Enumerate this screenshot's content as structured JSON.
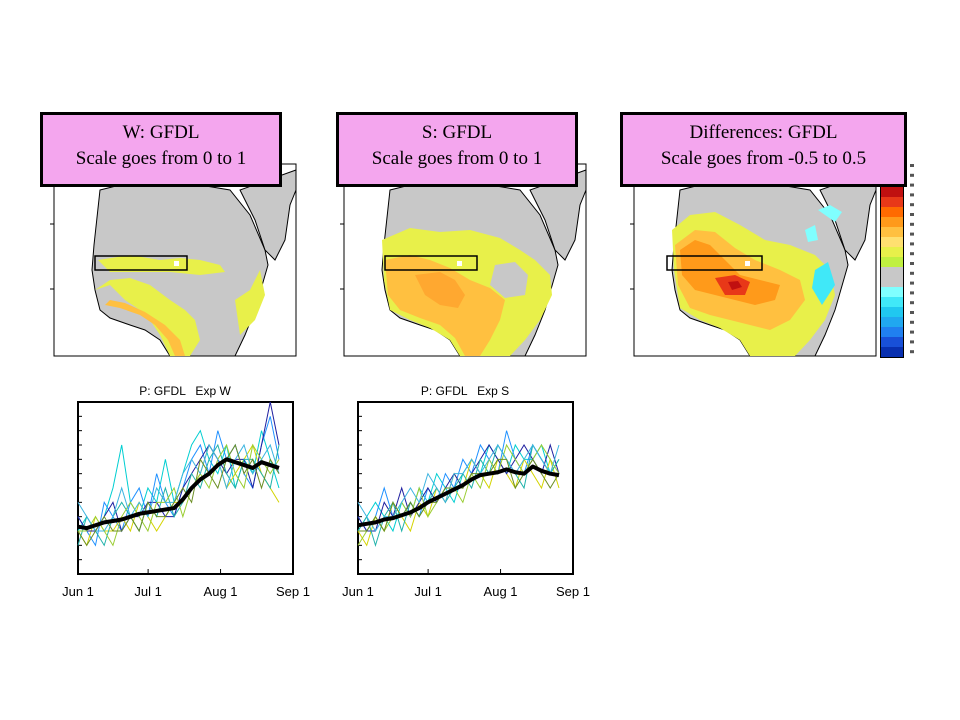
{
  "maps": [
    {
      "id": "W",
      "title_line1": "W: GFDL",
      "title_line2": "Scale goes from 0 to 1"
    },
    {
      "id": "S",
      "title_line1": "S: GFDL",
      "title_line2": "Scale goes from 0 to 1"
    },
    {
      "id": "D",
      "title_line1": "Differences: GFDL",
      "title_line2": "Scale goes from -0.5 to 0.5"
    }
  ],
  "colorbar": {
    "colors": [
      "#c01010",
      "#e83818",
      "#ff6a00",
      "#ff9a1a",
      "#ffc040",
      "#ffe070",
      "#e8f04a",
      "#c0f040",
      "#c8c8c8",
      "#c8c8c8",
      "#80ffff",
      "#40e8f8",
      "#20c8f0",
      "#20a8f0",
      "#2080f0",
      "#1850d8",
      "#0830b0"
    ]
  },
  "chart_data": [
    {
      "type": "line",
      "title": "P: GFDL   Exp W",
      "xlabel": "",
      "ylabel": "",
      "x_tick_labels": [
        "Jun 1",
        "Jul 1",
        "Aug 1",
        "Sep 1"
      ],
      "x_tick_days": [
        0,
        30,
        61,
        92
      ],
      "xlim": [
        0,
        92
      ],
      "ylim": [
        0,
        12
      ],
      "ensemble_mean": [
        3.3,
        3.2,
        3.4,
        3.6,
        3.7,
        3.8,
        4.0,
        4.2,
        4.3,
        4.4,
        4.5,
        4.6,
        5.2,
        6.0,
        6.6,
        7.0,
        7.6,
        8.0,
        7.8,
        7.6,
        7.4,
        7.8,
        7.6,
        7.4
      ],
      "members": [
        {
          "color": "#00ced1",
          "values": [
            3,
            4,
            3,
            4,
            6,
            9,
            5,
            4,
            6,
            5,
            8,
            5,
            7,
            9,
            10,
            8,
            7,
            9,
            6,
            8,
            7,
            10,
            8,
            6
          ]
        },
        {
          "color": "#1e90ff",
          "values": [
            4,
            3,
            2,
            5,
            4,
            3,
            5,
            6,
            4,
            7,
            5,
            4,
            6,
            8,
            9,
            7,
            10,
            8,
            9,
            7,
            6,
            9,
            11,
            8
          ]
        },
        {
          "color": "#d4d400",
          "values": [
            3,
            2,
            4,
            3,
            3,
            4,
            3,
            5,
            4,
            3,
            4,
            5,
            5,
            6,
            7,
            9,
            8,
            6,
            7,
            8,
            9,
            7,
            6,
            5
          ]
        },
        {
          "color": "#2020a0",
          "values": [
            4,
            3,
            3,
            4,
            5,
            3,
            4,
            4,
            5,
            5,
            4,
            4,
            6,
            7,
            8,
            9,
            8,
            7,
            8,
            8,
            6,
            9,
            12,
            9
          ]
        },
        {
          "color": "#20b2aa",
          "values": [
            2,
            4,
            3,
            2,
            4,
            5,
            4,
            3,
            5,
            4,
            6,
            4,
            5,
            7,
            6,
            8,
            9,
            7,
            6,
            8,
            8,
            7,
            6,
            9
          ]
        },
        {
          "color": "#9acd32",
          "values": [
            3,
            3,
            4,
            3,
            2,
            4,
            5,
            4,
            3,
            5,
            5,
            6,
            4,
            6,
            7,
            6,
            8,
            9,
            7,
            6,
            9,
            8,
            7,
            8
          ]
        },
        {
          "color": "#3cb4e0",
          "values": [
            5,
            4,
            3,
            3,
            4,
            6,
            4,
            5,
            4,
            6,
            5,
            5,
            7,
            8,
            7,
            9,
            8,
            6,
            8,
            9,
            7,
            8,
            9,
            7
          ]
        },
        {
          "color": "#6b8e23",
          "values": [
            3,
            2,
            3,
            4,
            3,
            3,
            4,
            3,
            5,
            4,
            4,
            5,
            6,
            5,
            8,
            7,
            6,
            8,
            9,
            7,
            8,
            6,
            8,
            7
          ]
        }
      ]
    },
    {
      "type": "line",
      "title": "P: GFDL   Exp S",
      "xlabel": "",
      "ylabel": "",
      "x_tick_labels": [
        "Jun 1",
        "Jul 1",
        "Aug 1",
        "Sep 1"
      ],
      "x_tick_days": [
        0,
        30,
        61,
        92
      ],
      "xlim": [
        0,
        92
      ],
      "ylim": [
        0,
        12
      ],
      "ensemble_mean": [
        3.4,
        3.5,
        3.6,
        3.8,
        3.9,
        4.1,
        4.3,
        4.6,
        5.0,
        5.3,
        5.6,
        5.9,
        6.2,
        6.6,
        6.9,
        7.0,
        7.1,
        7.3,
        7.1,
        7.0,
        7.5,
        7.2,
        7.0,
        6.9
      ],
      "members": [
        {
          "color": "#00ced1",
          "values": [
            3,
            4,
            5,
            4,
            3,
            5,
            4,
            6,
            5,
            7,
            6,
            5,
            7,
            8,
            7,
            9,
            8,
            7,
            9,
            8,
            8,
            9,
            7,
            8
          ]
        },
        {
          "color": "#1e90ff",
          "values": [
            4,
            3,
            4,
            6,
            4,
            4,
            5,
            4,
            6,
            5,
            7,
            6,
            8,
            7,
            9,
            8,
            7,
            10,
            8,
            7,
            9,
            8,
            7,
            7
          ]
        },
        {
          "color": "#d4d400",
          "values": [
            3,
            2,
            4,
            3,
            5,
            4,
            3,
            5,
            4,
            6,
            5,
            7,
            6,
            8,
            7,
            6,
            8,
            7,
            6,
            8,
            7,
            6,
            8,
            6
          ]
        },
        {
          "color": "#2020a0",
          "values": [
            4,
            3,
            3,
            5,
            4,
            6,
            4,
            5,
            6,
            5,
            6,
            7,
            6,
            7,
            8,
            9,
            8,
            7,
            8,
            9,
            8,
            7,
            9,
            7
          ]
        },
        {
          "color": "#20b2aa",
          "values": [
            3,
            4,
            2,
            4,
            5,
            3,
            5,
            4,
            5,
            6,
            5,
            6,
            7,
            6,
            8,
            7,
            9,
            8,
            7,
            6,
            9,
            8,
            7,
            8
          ]
        },
        {
          "color": "#9acd32",
          "values": [
            2,
            3,
            4,
            3,
            4,
            5,
            4,
            6,
            4,
            5,
            6,
            6,
            5,
            7,
            6,
            8,
            7,
            9,
            8,
            7,
            8,
            9,
            8,
            7
          ]
        },
        {
          "color": "#3cb4e0",
          "values": [
            5,
            4,
            3,
            4,
            4,
            5,
            6,
            5,
            7,
            6,
            5,
            7,
            7,
            8,
            7,
            8,
            9,
            8,
            7,
            8,
            9,
            8,
            7,
            9
          ]
        },
        {
          "color": "#6b8e23",
          "values": [
            3,
            3,
            4,
            3,
            5,
            4,
            5,
            4,
            5,
            5,
            6,
            6,
            6,
            7,
            7,
            7,
            8,
            8,
            6,
            7,
            8,
            7,
            6,
            7
          ]
        }
      ]
    }
  ]
}
